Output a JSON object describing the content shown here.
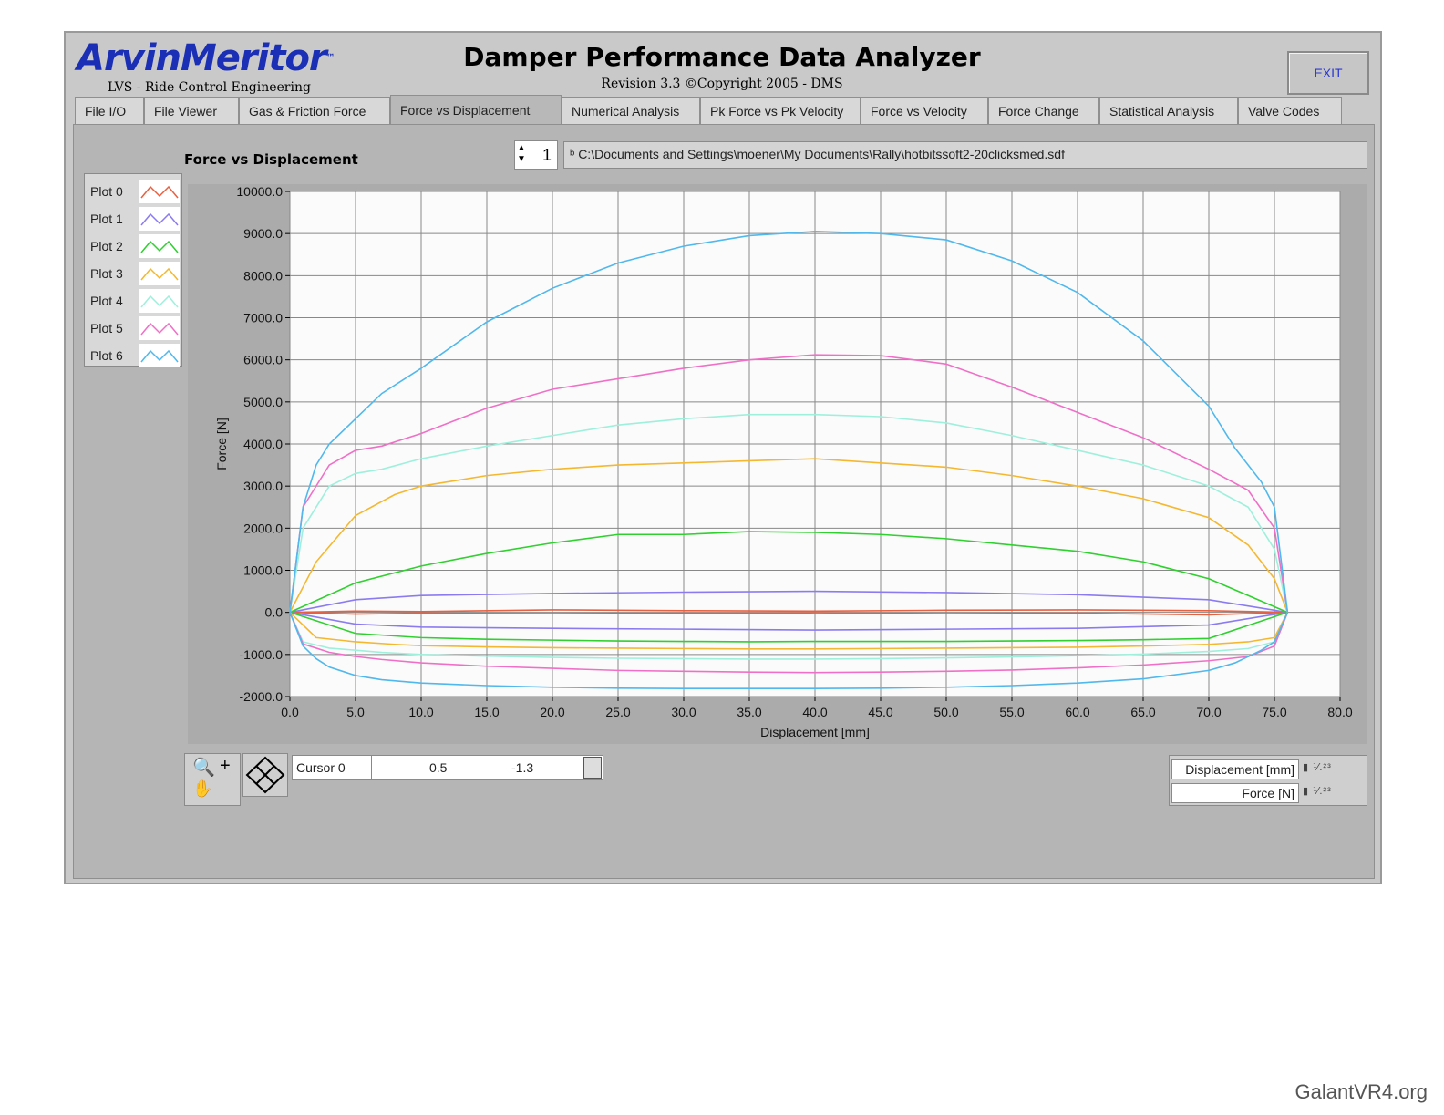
{
  "brand": {
    "logo": "ArvinMeritor",
    "sub": "LVS - Ride Control Engineering"
  },
  "title": "Damper Performance Data Analyzer",
  "revision": "Revision 3.3  ©Copyright 2005 - DMS",
  "exit_label": "EXIT",
  "tabs": [
    {
      "label": "File I/O"
    },
    {
      "label": "File Viewer"
    },
    {
      "label": "Gas & Friction Force"
    },
    {
      "label": "Force vs Displacement"
    },
    {
      "label": "Numerical Analysis"
    },
    {
      "label": "Pk Force vs Pk Velocity"
    },
    {
      "label": "Force vs Velocity"
    },
    {
      "label": "Force Change"
    },
    {
      "label": "Statistical Analysis"
    },
    {
      "label": "Valve Codes"
    }
  ],
  "active_tab": "Force vs Displacement",
  "graph": {
    "title": "Force vs Displacement",
    "file_index": "1",
    "file_path": "C:\\Documents and Settings\\moener\\My Documents\\Rally\\hotbitssoft2-20clicksmed.sdf"
  },
  "legend": [
    {
      "label": "Plot 0",
      "color": "#e86040"
    },
    {
      "label": "Plot 1",
      "color": "#8a7cf0"
    },
    {
      "label": "Plot 2",
      "color": "#30d030"
    },
    {
      "label": "Plot 3",
      "color": "#f4b830"
    },
    {
      "label": "Plot 4",
      "color": "#9ef0dc"
    },
    {
      "label": "Plot 5",
      "color": "#f070c8"
    },
    {
      "label": "Plot 6",
      "color": "#50b8ec"
    }
  ],
  "cursor": {
    "name": "Cursor 0",
    "x": "0.5",
    "y": "-1.3"
  },
  "axis_controls": {
    "x_label": "Displacement [mm]",
    "y_label": "Force [N]"
  },
  "watermark": "GalantVR4.org",
  "chart_data": {
    "type": "line",
    "xlabel": "Displacement [mm]",
    "ylabel": "Force [N]",
    "xlim": [
      0,
      80
    ],
    "ylim": [
      -2000,
      10000
    ],
    "xticks": [
      "0.0",
      "5.0",
      "10.0",
      "15.0",
      "20.0",
      "25.0",
      "30.0",
      "35.0",
      "40.0",
      "45.0",
      "50.0",
      "55.0",
      "60.0",
      "65.0",
      "70.0",
      "75.0",
      "80.0"
    ],
    "yticks": [
      "10000.0",
      "9000.0",
      "8000.0",
      "7000.0",
      "6000.0",
      "5000.0",
      "4000.0",
      "3000.0",
      "2000.0",
      "1000.0",
      "0.0",
      "-1000.0",
      "-2000.0"
    ],
    "grid": true,
    "series": [
      {
        "name": "Plot 0",
        "color": "#e86040",
        "x": [
          0,
          5,
          10,
          20,
          30,
          40,
          50,
          60,
          70,
          76
        ],
        "upper": [
          0,
          30,
          20,
          60,
          40,
          30,
          50,
          60,
          40,
          0
        ],
        "lower": [
          0,
          -40,
          -20,
          -30,
          -20,
          -10,
          -30,
          -20,
          -60,
          0
        ]
      },
      {
        "name": "Plot 1",
        "color": "#8a7cf0",
        "x": [
          0,
          5,
          10,
          20,
          30,
          40,
          50,
          60,
          70,
          76
        ],
        "upper": [
          0,
          300,
          400,
          450,
          480,
          500,
          470,
          420,
          300,
          0
        ],
        "lower": [
          0,
          -280,
          -350,
          -380,
          -400,
          -420,
          -400,
          -380,
          -300,
          0
        ]
      },
      {
        "name": "Plot 2",
        "color": "#30d030",
        "x": [
          0,
          5,
          10,
          15,
          20,
          25,
          30,
          35,
          40,
          45,
          50,
          55,
          60,
          65,
          70,
          76
        ],
        "upper": [
          0,
          700,
          1100,
          1400,
          1650,
          1850,
          1850,
          1920,
          1900,
          1850,
          1750,
          1600,
          1450,
          1200,
          800,
          0
        ],
        "lower": [
          0,
          -500,
          -600,
          -640,
          -660,
          -680,
          -690,
          -700,
          -690,
          -690,
          -690,
          -680,
          -670,
          -650,
          -620,
          0
        ]
      },
      {
        "name": "Plot 3",
        "color": "#f4b830",
        "x": [
          0,
          2,
          5,
          8,
          10,
          15,
          20,
          25,
          30,
          35,
          40,
          45,
          50,
          55,
          60,
          65,
          70,
          73,
          75,
          76
        ],
        "upper": [
          0,
          1200,
          2300,
          2800,
          3000,
          3250,
          3400,
          3500,
          3550,
          3600,
          3650,
          3550,
          3450,
          3250,
          3000,
          2700,
          2250,
          1600,
          800,
          0
        ],
        "lower": [
          0,
          -600,
          -700,
          -760,
          -790,
          -820,
          -840,
          -850,
          -860,
          -870,
          -870,
          -860,
          -850,
          -840,
          -830,
          -800,
          -760,
          -700,
          -600,
          0
        ]
      },
      {
        "name": "Plot 4",
        "color": "#9ef0dc",
        "x": [
          0,
          1,
          3,
          5,
          7,
          10,
          15,
          20,
          25,
          30,
          35,
          40,
          45,
          50,
          55,
          60,
          65,
          70,
          73,
          75,
          76
        ],
        "upper": [
          0,
          2000,
          3000,
          3300,
          3400,
          3650,
          3950,
          4200,
          4450,
          4600,
          4700,
          4700,
          4650,
          4500,
          4200,
          3850,
          3500,
          3000,
          2500,
          1500,
          0
        ],
        "lower": [
          0,
          -700,
          -850,
          -900,
          -950,
          -1000,
          -1040,
          -1070,
          -1090,
          -1100,
          -1110,
          -1110,
          -1100,
          -1080,
          -1060,
          -1030,
          -990,
          -930,
          -860,
          -700,
          0
        ]
      },
      {
        "name": "Plot 5",
        "color": "#f070c8",
        "x": [
          0,
          1,
          3,
          5,
          7,
          10,
          15,
          20,
          25,
          30,
          35,
          40,
          45,
          50,
          55,
          60,
          65,
          70,
          73,
          75,
          76
        ],
        "upper": [
          0,
          2500,
          3500,
          3850,
          3950,
          4250,
          4850,
          5300,
          5550,
          5800,
          6000,
          6120,
          6100,
          5900,
          5350,
          4750,
          4150,
          3400,
          2900,
          2000,
          0
        ],
        "lower": [
          0,
          -750,
          -950,
          -1050,
          -1120,
          -1200,
          -1280,
          -1330,
          -1380,
          -1400,
          -1420,
          -1430,
          -1420,
          -1400,
          -1370,
          -1320,
          -1250,
          -1150,
          -1050,
          -800,
          0
        ]
      },
      {
        "name": "Plot 6",
        "color": "#50b8ec",
        "x": [
          0,
          1,
          2,
          3,
          5,
          7,
          10,
          15,
          20,
          25,
          30,
          35,
          40,
          45,
          50,
          55,
          60,
          65,
          70,
          72,
          74,
          75,
          76
        ],
        "upper": [
          0,
          2500,
          3500,
          4000,
          4600,
          5200,
          5800,
          6900,
          7700,
          8300,
          8700,
          8950,
          9050,
          9000,
          8850,
          8350,
          7600,
          6450,
          4900,
          3900,
          3100,
          2500,
          0
        ],
        "lower": [
          0,
          -800,
          -1100,
          -1300,
          -1500,
          -1600,
          -1680,
          -1740,
          -1780,
          -1800,
          -1810,
          -1810,
          -1810,
          -1800,
          -1780,
          -1740,
          -1680,
          -1580,
          -1380,
          -1200,
          -900,
          -700,
          0
        ]
      }
    ]
  }
}
